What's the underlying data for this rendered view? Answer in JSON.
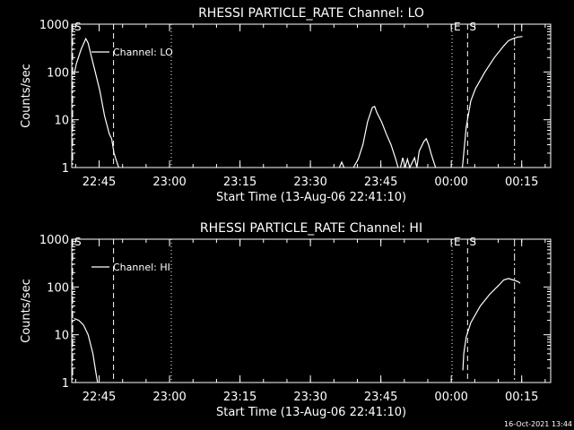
{
  "timestamp": "16-Oct-2021 13:44",
  "chart_data": [
    {
      "type": "line",
      "title": "RHESSI PARTICLE_RATE Channel: LO",
      "xlabel": "Start Time (13-Aug-06 22:41:10)",
      "ylabel": "Counts/sec",
      "yscale": "log",
      "ylim": [
        1,
        1000
      ],
      "xlim_minutes": [
        -2,
        100
      ],
      "xticks": [
        {
          "label": "22:45",
          "t": 3.83
        },
        {
          "label": "23:00",
          "t": 18.83
        },
        {
          "label": "23:15",
          "t": 33.83
        },
        {
          "label": "23:30",
          "t": 48.83
        },
        {
          "label": "23:45",
          "t": 63.83
        },
        {
          "label": "00:00",
          "t": 78.83
        },
        {
          "label": "00:15",
          "t": 93.83
        }
      ],
      "yticks": [
        "1",
        "10",
        "100",
        "1000"
      ],
      "legend": "Channel: LO",
      "markers": [
        {
          "label": "S",
          "t": -1.8,
          "style": "dashdot"
        },
        {
          "label": "",
          "t": 6.9,
          "style": "dashed"
        },
        {
          "label": "",
          "t": 19.2,
          "style": "dotted"
        },
        {
          "label": "E",
          "t": 79.0,
          "style": "dotted"
        },
        {
          "label": "S",
          "t": 82.3,
          "style": "dashed"
        },
        {
          "label": "",
          "t": 92.3,
          "style": "dashdot"
        }
      ],
      "series": [
        {
          "segments": [
            [
              [
                -1.5,
                90
              ],
              [
                -1,
                150
              ],
              [
                0,
                300
              ],
              [
                1,
                500
              ],
              [
                1.5,
                400
              ],
              [
                2,
                250
              ],
              [
                3,
                100
              ],
              [
                4,
                40
              ],
              [
                5,
                12
              ],
              [
                6,
                5
              ],
              [
                6.5,
                4
              ],
              [
                7,
                2
              ],
              [
                7.4,
                1.5
              ],
              [
                8.0,
                1
              ]
            ],
            [
              [
                55,
                1
              ],
              [
                55.5,
                1.3
              ],
              [
                56,
                1
              ]
            ],
            [
              [
                58,
                1
              ],
              [
                59,
                1.5
              ],
              [
                60,
                3
              ],
              [
                61,
                9
              ],
              [
                62,
                18
              ],
              [
                62.5,
                19
              ],
              [
                63,
                14
              ],
              [
                64,
                9
              ],
              [
                65,
                5
              ],
              [
                66,
                3
              ],
              [
                67,
                1.5
              ],
              [
                67.5,
                1
              ]
            ],
            [
              [
                68,
                1
              ],
              [
                68.5,
                1.6
              ],
              [
                69,
                1
              ],
              [
                69.5,
                1.5
              ],
              [
                70,
                1
              ],
              [
                71,
                1.6
              ],
              [
                71.5,
                1
              ],
              [
                72,
                2.2
              ],
              [
                73,
                3.5
              ],
              [
                73.5,
                4
              ],
              [
                74,
                3
              ],
              [
                74.5,
                2
              ],
              [
                75,
                1.4
              ],
              [
                75.5,
                1
              ]
            ],
            [
              [
                81.2,
                1
              ],
              [
                82,
                7
              ],
              [
                83,
                25
              ],
              [
                84,
                45
              ],
              [
                86,
                100
              ],
              [
                88,
                200
              ],
              [
                90,
                350
              ],
              [
                91,
                450
              ],
              [
                92,
                500
              ],
              [
                93,
                540
              ],
              [
                94,
                550
              ]
            ]
          ]
        }
      ]
    },
    {
      "type": "line",
      "title": "RHESSI PARTICLE_RATE Channel: HI",
      "xlabel": "Start Time (13-Aug-06 22:41:10)",
      "ylabel": "Counts/sec",
      "yscale": "log",
      "ylim": [
        1,
        1000
      ],
      "xlim_minutes": [
        -2,
        100
      ],
      "xticks": [
        {
          "label": "22:45",
          "t": 3.83
        },
        {
          "label": "23:00",
          "t": 18.83
        },
        {
          "label": "23:15",
          "t": 33.83
        },
        {
          "label": "23:30",
          "t": 48.83
        },
        {
          "label": "23:45",
          "t": 63.83
        },
        {
          "label": "00:00",
          "t": 78.83
        },
        {
          "label": "00:15",
          "t": 93.83
        }
      ],
      "yticks": [
        "1",
        "10",
        "100",
        "1000"
      ],
      "legend": "Channel: HI",
      "markers": [
        {
          "label": "S",
          "t": -1.8,
          "style": "dashdot"
        },
        {
          "label": "",
          "t": 6.9,
          "style": "dashed"
        },
        {
          "label": "",
          "t": 19.2,
          "style": "dotted"
        },
        {
          "label": "E",
          "t": 79.0,
          "style": "dotted"
        },
        {
          "label": "S",
          "t": 82.3,
          "style": "dashed"
        },
        {
          "label": "",
          "t": 92.3,
          "style": "dashdot"
        }
      ],
      "series": [
        {
          "segments": [
            [
              [
                -1.5,
                22
              ],
              [
                -0.5,
                20
              ],
              [
                0.5,
                16
              ],
              [
                1.5,
                10
              ],
              [
                2.5,
                4
              ],
              [
                3.2,
                1.5
              ],
              [
                3.5,
                1
              ]
            ],
            [
              [
                81.3,
                1.8
              ],
              [
                81.5,
                4
              ],
              [
                82,
                9
              ],
              [
                83,
                18
              ],
              [
                85,
                40
              ],
              [
                87,
                70
              ],
              [
                89,
                110
              ],
              [
                90,
                140
              ],
              [
                91,
                150
              ],
              [
                92,
                140
              ],
              [
                93,
                130
              ],
              [
                93.5,
                120
              ]
            ]
          ]
        }
      ]
    }
  ]
}
